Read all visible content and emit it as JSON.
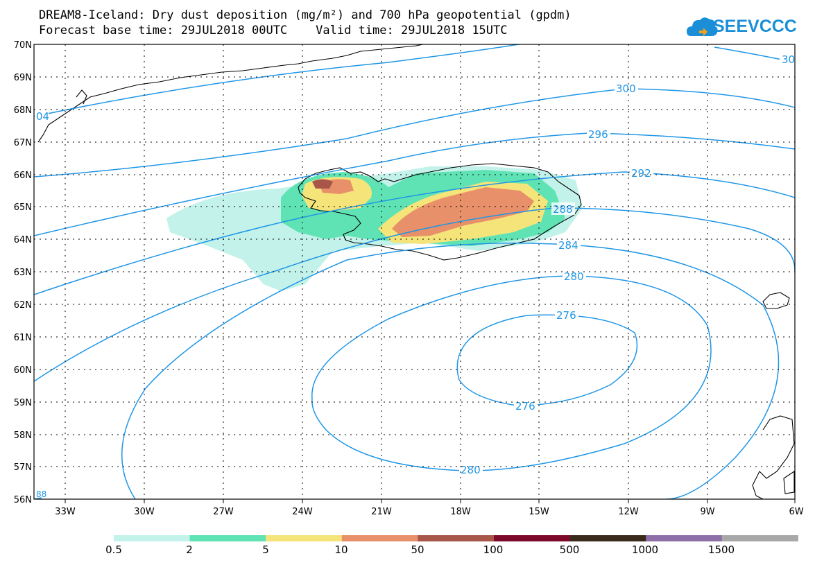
{
  "header": {
    "title_line1": "DREAM8-Iceland: Dry dust deposition (mg/m²) and 700 hPa geopotential (gpdm)",
    "title_line2": "Forecast base time: 29JUL2018 00UTC    Valid time: 29JUL2018 15UTC"
  },
  "logo": {
    "text": "SEEVCCC",
    "color": "#1a8fd8"
  },
  "map": {
    "lat_labels": [
      "70N",
      "69N",
      "68N",
      "67N",
      "66N",
      "65N",
      "64N",
      "63N",
      "62N",
      "61N",
      "60N",
      "59N",
      "58N",
      "57N",
      "56N"
    ],
    "lon_labels": [
      "33W",
      "30W",
      "27W",
      "24W",
      "21W",
      "18W",
      "15W",
      "12W",
      "9W",
      "6W"
    ],
    "contour_color": "#1f96e6",
    "contour_labels": {
      "c300": "300",
      "c304": "04",
      "c30x": "30",
      "c296": "296",
      "c292": "292",
      "c288": "288",
      "c284": "284",
      "c280a": "280",
      "c280b": "280",
      "c276a": "276",
      "c276b": "276",
      "c288s": "88"
    }
  },
  "legend": {
    "colors": [
      "#c3f2ea",
      "#5fe3b4",
      "#f5e47a",
      "#e8906a",
      "#a8554a",
      "#7d0a2a",
      "#3a2a1a",
      "#8f6fa8",
      "#a8a8a8"
    ],
    "labels": [
      "0.5",
      "2",
      "5",
      "10",
      "50",
      "100",
      "500",
      "1000",
      "1500"
    ]
  }
}
